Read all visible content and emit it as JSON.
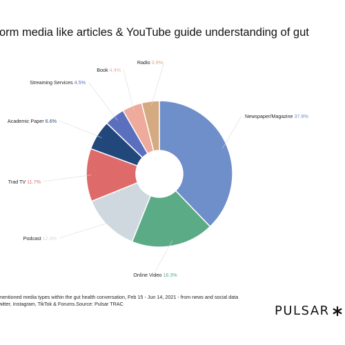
{
  "title": "orm media like articles & YouTube guide understanding of gut",
  "chart_data": {
    "type": "pie",
    "donut": true,
    "slices": [
      {
        "label": "Newspaper/Magazine",
        "value": 37.8,
        "display": "37.8%",
        "color": "#6f8fca"
      },
      {
        "label": "Online Video",
        "value": 18.3,
        "display": "18.3%",
        "color": "#5aab86"
      },
      {
        "label": "Podcast",
        "value": 12.8,
        "display": "12.8%",
        "color": "#cfd8df"
      },
      {
        "label": "Trad TV",
        "value": 11.7,
        "display": "11.7%",
        "color": "#df6a6a"
      },
      {
        "label": "Academic Paper",
        "value": 6.6,
        "display": "6.6%",
        "color": "#22477a"
      },
      {
        "label": "Streaming Services",
        "value": 4.5,
        "display": "4.5%",
        "color": "#5b6fbf"
      },
      {
        "label": "Book",
        "value": 4.4,
        "display": "4.4%",
        "color": "#eeaa9b"
      },
      {
        "label": "Radio",
        "value": 3.9,
        "display": "3.9%",
        "color": "#d4aa80"
      }
    ]
  },
  "footnote": {
    "line1": "mentioned media types within the gut health conversation, Feb 15 - Jun 14, 2021 - from news and social data",
    "line2": "witter, Instagram, TikTok & Forums.Source: Pulsar TRAC"
  },
  "brand": {
    "name": "PULSAR",
    "icon": "asterisk-icon"
  }
}
